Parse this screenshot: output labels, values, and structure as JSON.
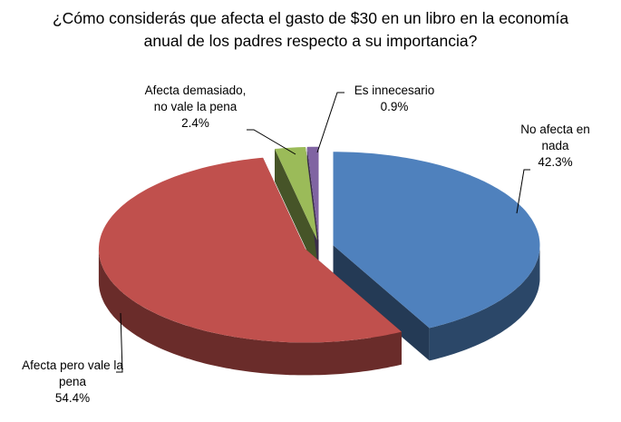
{
  "chart_data": {
    "type": "pie3d",
    "title": "¿Cómo considerás que afecta el gasto de $30 en un libro en la economía anual de los padres respecto a su importancia?",
    "categories": [
      "No afecta en nada",
      "Afecta pero vale la pena",
      "Afecta demasiado, no vale la pena",
      "Es innecesario"
    ],
    "values": [
      42.3,
      54.4,
      2.4,
      0.9
    ],
    "value_labels": [
      "42.3%",
      "54.4%",
      "2.4%",
      "0.9%"
    ],
    "colors": [
      "#4f81bd",
      "#c0504d",
      "#9bbb59",
      "#8064a2"
    ]
  }
}
